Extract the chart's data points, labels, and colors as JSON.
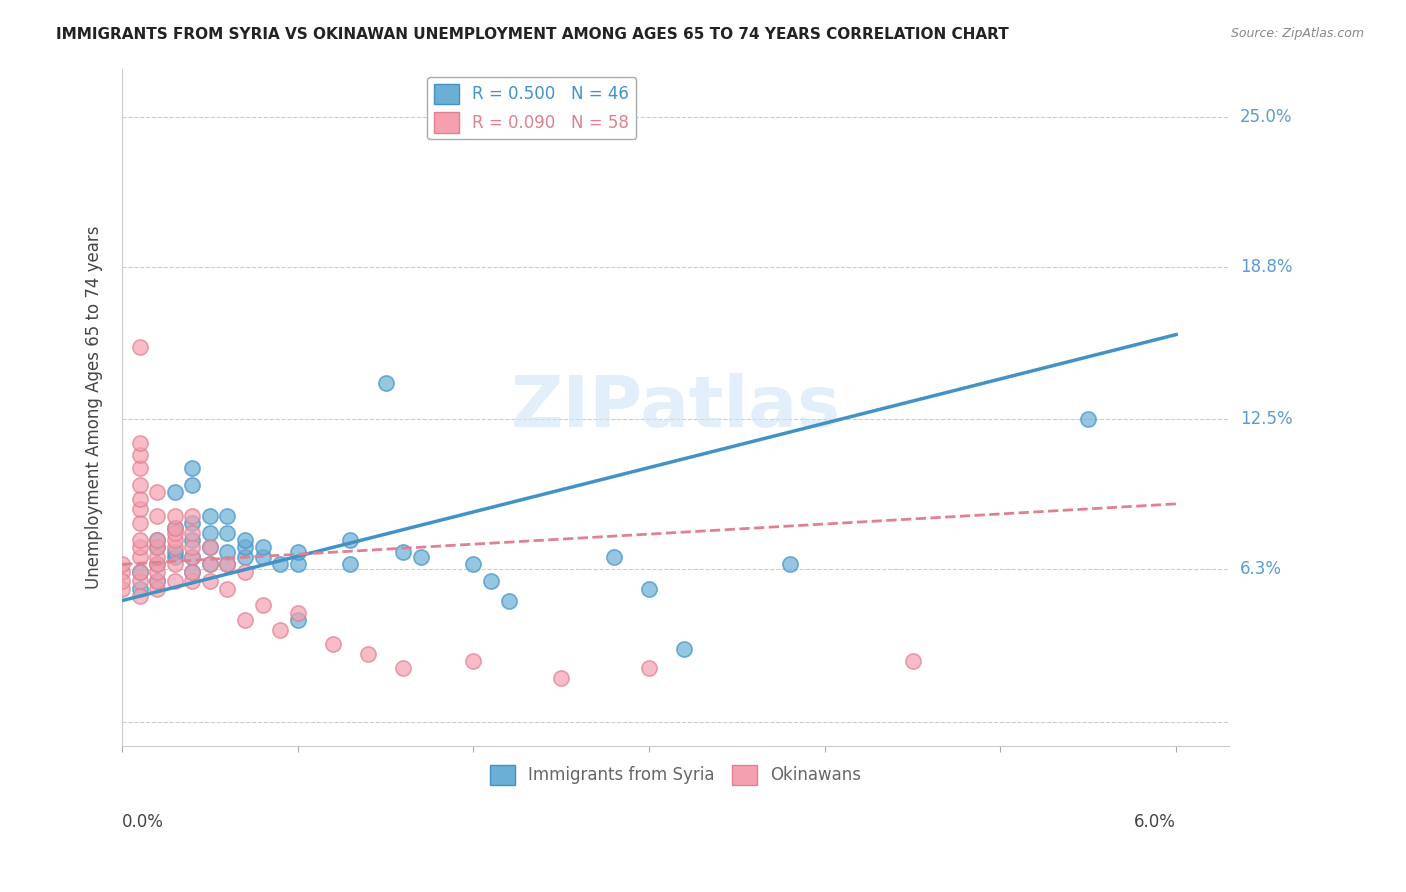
{
  "title": "IMMIGRANTS FROM SYRIA VS OKINAWAN UNEMPLOYMENT AMONG AGES 65 TO 74 YEARS CORRELATION CHART",
  "source": "Source: ZipAtlas.com",
  "ylabel": "Unemployment Among Ages 65 to 74 years",
  "yticks": [
    0.0,
    0.063,
    0.125,
    0.188,
    0.25
  ],
  "ytick_labels": [
    "",
    "6.3%",
    "12.5%",
    "18.8%",
    "25.0%"
  ],
  "xticks": [
    0.0,
    0.01,
    0.02,
    0.03,
    0.04,
    0.05,
    0.06
  ],
  "watermark": "ZIPatlas",
  "blue_color": "#6baed6",
  "pink_color": "#f4a0b0",
  "line_blue": "#4292c6",
  "line_pink": "#e08090",
  "blue_scatter": [
    [
      0.001,
      0.055
    ],
    [
      0.001,
      0.062
    ],
    [
      0.002,
      0.058
    ],
    [
      0.002,
      0.065
    ],
    [
      0.002,
      0.072
    ],
    [
      0.002,
      0.075
    ],
    [
      0.003,
      0.068
    ],
    [
      0.003,
      0.07
    ],
    [
      0.003,
      0.08
    ],
    [
      0.003,
      0.095
    ],
    [
      0.004,
      0.062
    ],
    [
      0.004,
      0.068
    ],
    [
      0.004,
      0.075
    ],
    [
      0.004,
      0.082
    ],
    [
      0.004,
      0.098
    ],
    [
      0.004,
      0.105
    ],
    [
      0.005,
      0.065
    ],
    [
      0.005,
      0.072
    ],
    [
      0.005,
      0.078
    ],
    [
      0.005,
      0.085
    ],
    [
      0.006,
      0.065
    ],
    [
      0.006,
      0.07
    ],
    [
      0.006,
      0.078
    ],
    [
      0.006,
      0.085
    ],
    [
      0.007,
      0.068
    ],
    [
      0.007,
      0.072
    ],
    [
      0.007,
      0.075
    ],
    [
      0.008,
      0.068
    ],
    [
      0.008,
      0.072
    ],
    [
      0.009,
      0.065
    ],
    [
      0.01,
      0.042
    ],
    [
      0.01,
      0.065
    ],
    [
      0.01,
      0.07
    ],
    [
      0.013,
      0.075
    ],
    [
      0.013,
      0.065
    ],
    [
      0.015,
      0.14
    ],
    [
      0.016,
      0.07
    ],
    [
      0.017,
      0.068
    ],
    [
      0.02,
      0.065
    ],
    [
      0.021,
      0.058
    ],
    [
      0.022,
      0.05
    ],
    [
      0.028,
      0.068
    ],
    [
      0.03,
      0.055
    ],
    [
      0.032,
      0.03
    ],
    [
      0.038,
      0.065
    ],
    [
      0.055,
      0.125
    ]
  ],
  "pink_scatter": [
    [
      0.0,
      0.055
    ],
    [
      0.0,
      0.062
    ],
    [
      0.0,
      0.065
    ],
    [
      0.0,
      0.058
    ],
    [
      0.001,
      0.052
    ],
    [
      0.001,
      0.058
    ],
    [
      0.001,
      0.062
    ],
    [
      0.001,
      0.068
    ],
    [
      0.001,
      0.072
    ],
    [
      0.001,
      0.075
    ],
    [
      0.001,
      0.082
    ],
    [
      0.001,
      0.088
    ],
    [
      0.001,
      0.092
    ],
    [
      0.001,
      0.098
    ],
    [
      0.001,
      0.105
    ],
    [
      0.001,
      0.11
    ],
    [
      0.001,
      0.115
    ],
    [
      0.001,
      0.155
    ],
    [
      0.002,
      0.055
    ],
    [
      0.002,
      0.058
    ],
    [
      0.002,
      0.062
    ],
    [
      0.002,
      0.065
    ],
    [
      0.002,
      0.068
    ],
    [
      0.002,
      0.072
    ],
    [
      0.002,
      0.075
    ],
    [
      0.002,
      0.085
    ],
    [
      0.002,
      0.095
    ],
    [
      0.003,
      0.058
    ],
    [
      0.003,
      0.065
    ],
    [
      0.003,
      0.072
    ],
    [
      0.003,
      0.075
    ],
    [
      0.003,
      0.078
    ],
    [
      0.003,
      0.08
    ],
    [
      0.003,
      0.085
    ],
    [
      0.004,
      0.058
    ],
    [
      0.004,
      0.062
    ],
    [
      0.004,
      0.068
    ],
    [
      0.004,
      0.072
    ],
    [
      0.004,
      0.078
    ],
    [
      0.004,
      0.085
    ],
    [
      0.005,
      0.058
    ],
    [
      0.005,
      0.065
    ],
    [
      0.005,
      0.072
    ],
    [
      0.006,
      0.055
    ],
    [
      0.006,
      0.065
    ],
    [
      0.007,
      0.062
    ],
    [
      0.007,
      0.042
    ],
    [
      0.008,
      0.048
    ],
    [
      0.009,
      0.038
    ],
    [
      0.01,
      0.045
    ],
    [
      0.012,
      0.032
    ],
    [
      0.014,
      0.028
    ],
    [
      0.016,
      0.022
    ],
    [
      0.02,
      0.025
    ],
    [
      0.025,
      0.018
    ],
    [
      0.03,
      0.022
    ],
    [
      0.045,
      0.025
    ]
  ],
  "blue_line_x": [
    0.0,
    0.06
  ],
  "blue_line_y": [
    0.05,
    0.16
  ],
  "pink_line_x": [
    0.0,
    0.06
  ],
  "pink_line_y": [
    0.065,
    0.09
  ],
  "xlim": [
    0.0,
    0.063
  ],
  "ylim": [
    -0.01,
    0.27
  ]
}
